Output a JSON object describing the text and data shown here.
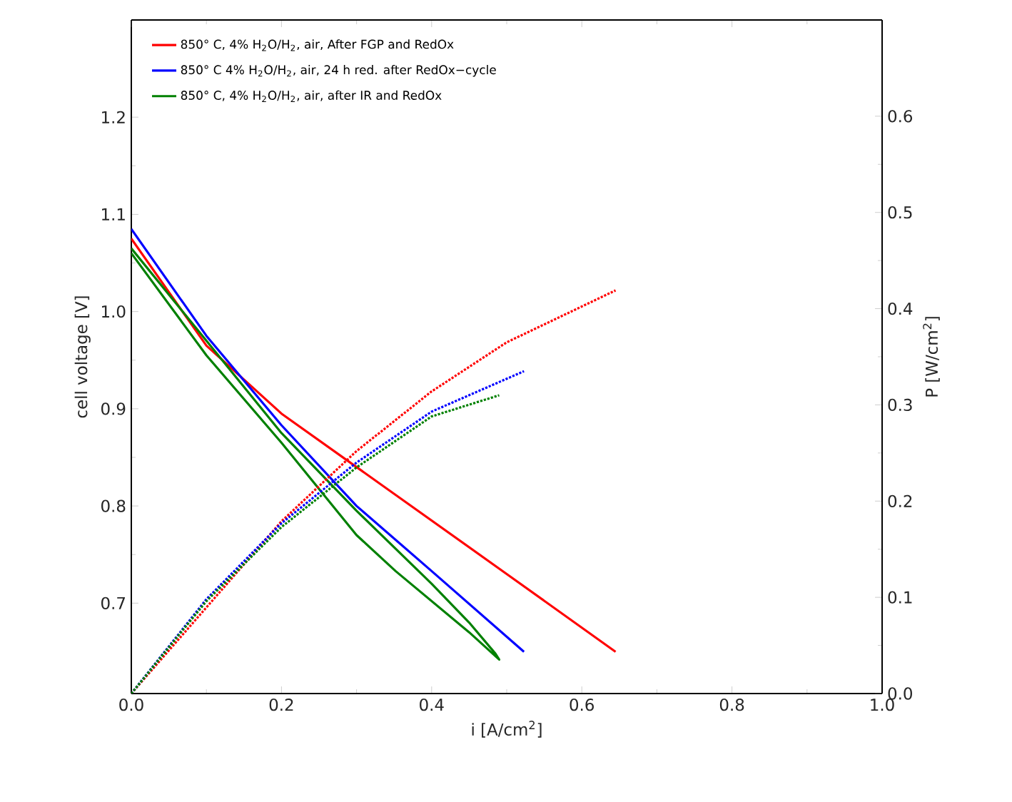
{
  "chart_data": {
    "type": "line",
    "xlabel": "i [A/cm$^{2}$]",
    "ylabel": "cell voltage [V]",
    "y2label": "P [W/cm$^{2}$]",
    "xlim": [
      0,
      1
    ],
    "xticks": [
      {
        "value": 0,
        "label": "0.0"
      },
      0.2,
      0.4,
      0.6,
      0.8,
      {
        "value": 1,
        "label": "1.0"
      }
    ],
    "ylim": [
      0.607,
      1.3
    ],
    "yticks": [
      0.7,
      0.8,
      0.9,
      {
        "value": 1,
        "label": "1.0"
      },
      1.1,
      1.2
    ],
    "y2lim": [
      0,
      0.7
    ],
    "y2ticks": [
      {
        "value": 0,
        "label": "0.0"
      },
      0.1,
      0.2,
      0.3,
      0.4,
      0.5,
      0.6
    ],
    "legend": "top left",
    "series": [
      {
        "name": "850° C, 4% H$_{2}$O/H$_{2}$, air, After FGP and RedOx",
        "color": "#ff0000",
        "line_style": "solid",
        "x": [
          0,
          0.1,
          0.2,
          0.3,
          0.4,
          0.5,
          0.645
        ],
        "values": [
          1.075,
          0.965,
          0.895,
          0.84,
          0.785,
          0.73,
          0.65
        ]
      },
      {
        "name": "850° C 4% H$_{2}$O/H$_{2}$, air, 24 h red. after RedOx−cycle",
        "color": "#0000ff",
        "line_style": "solid",
        "x": [
          0,
          0.05,
          0.1,
          0.2,
          0.3,
          0.4,
          0.523
        ],
        "values": [
          1.085,
          1.03,
          0.975,
          0.883,
          0.8,
          0.733,
          0.65
        ]
      },
      {
        "name": "850° C, 4% H$_{2}$O/H$_{2}$, air, after  IR and RedOx",
        "color": "#008000",
        "line_style": "solid",
        "x": [
          0,
          0.1,
          0.2,
          0.3,
          0.352,
          0.45,
          0.49,
          0.485,
          0.45,
          0.4,
          0.3,
          0.2,
          0.1,
          0
        ],
        "values": [
          1.06,
          0.955,
          0.865,
          0.77,
          0.733,
          0.67,
          0.642,
          0.648,
          0.68,
          0.72,
          0.795,
          0.875,
          0.97,
          1.065
        ]
      },
      {
        "color": "#ff0000",
        "axis": "y2",
        "line_style": "dotted",
        "x": [
          0,
          0.1,
          0.2,
          0.3,
          0.4,
          0.5,
          0.645
        ],
        "values": [
          0,
          null,
          0.179,
          0.252,
          0.314,
          0.365,
          0.419
        ]
      },
      {
        "color": "#0000ff",
        "axis": "y2",
        "line_style": "dotted",
        "x": [
          0,
          0.1,
          0.2,
          0.3,
          0.4,
          0.523
        ],
        "values": [
          0,
          0.098,
          0.177,
          0.24,
          0.293,
          0.335
        ]
      },
      {
        "color": "#008000",
        "axis": "y2",
        "line_style": "dotted",
        "x": [
          0,
          0.1,
          0.2,
          0.3,
          0.4,
          0.49
        ],
        "values": [
          0,
          0.096,
          0.173,
          0.235,
          0.288,
          0.31
        ]
      }
    ]
  }
}
